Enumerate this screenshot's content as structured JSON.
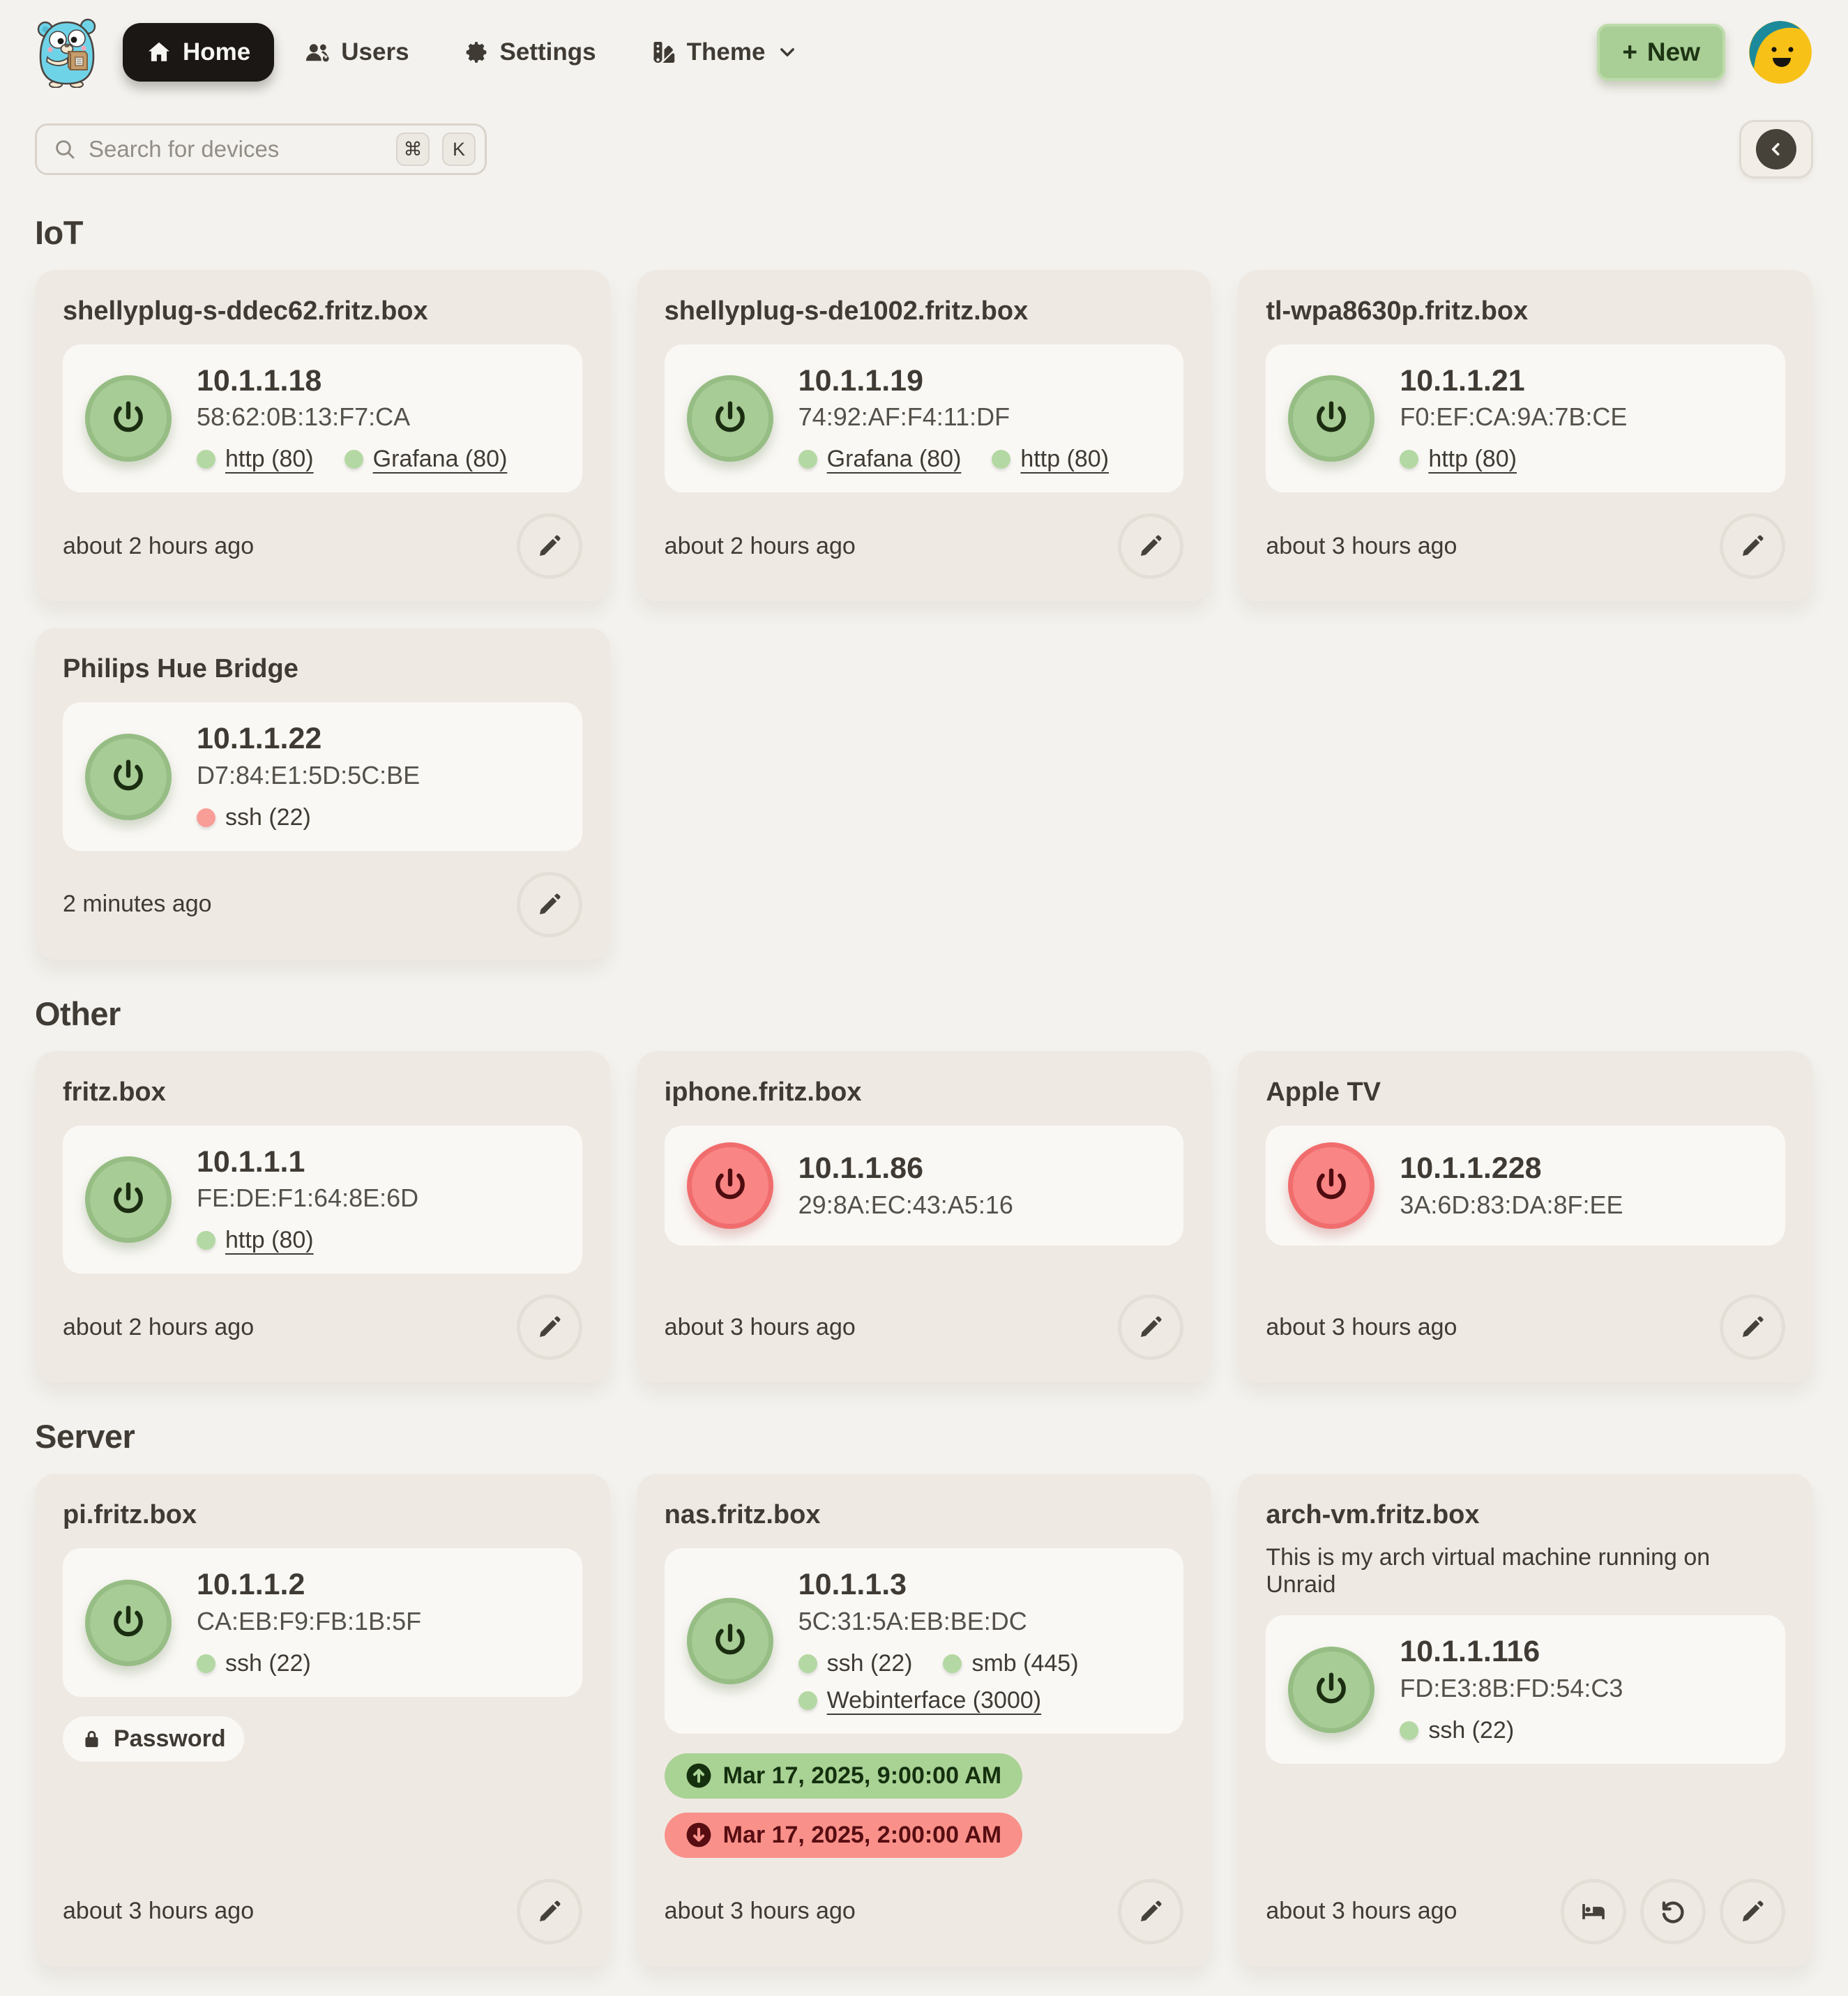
{
  "brand": {
    "logo": "gopher-mascot"
  },
  "nav": {
    "home": "Home",
    "users": "Users",
    "settings": "Settings",
    "theme": "Theme",
    "new_plus": "+",
    "new_label": "New"
  },
  "search": {
    "placeholder": "Search for devices",
    "key_cmd": "⌘",
    "key_k": "K"
  },
  "colors": {
    "page_bg": "#F4F2EE",
    "card_bg": "#EFE9E3",
    "panel_bg": "#FAF8F5",
    "power_on": "#A7CC95",
    "power_off": "#F98585",
    "port_up_dot": "#B4D8A3",
    "port_down_dot": "#F99E97",
    "wake_badge": "#A9D295",
    "shutdown_badge": "#F9918A",
    "nav_active": "#1A1714",
    "new_button": "#A9CE96"
  },
  "sections": [
    {
      "title": "IoT",
      "devices": [
        {
          "name": "shellyplug-s-ddec62.fritz.box",
          "ip": "10.1.1.18",
          "mac": "58:62:0B:13:F7:CA",
          "power": "on",
          "ports": [
            {
              "label": "http (80)",
              "status": "up",
              "link": true
            },
            {
              "label": "Grafana (80)",
              "status": "up",
              "link": true
            }
          ],
          "updated": "about 2 hours ago",
          "actions": [
            "edit"
          ]
        },
        {
          "name": "shellyplug-s-de1002.fritz.box",
          "ip": "10.1.1.19",
          "mac": "74:92:AF:F4:11:DF",
          "power": "on",
          "ports": [
            {
              "label": "Grafana (80)",
              "status": "up",
              "link": true
            },
            {
              "label": "http (80)",
              "status": "up",
              "link": true
            }
          ],
          "updated": "about 2 hours ago",
          "actions": [
            "edit"
          ]
        },
        {
          "name": "tl-wpa8630p.fritz.box",
          "ip": "10.1.1.21",
          "mac": "F0:EF:CA:9A:7B:CE",
          "power": "on",
          "ports": [
            {
              "label": "http (80)",
              "status": "up",
              "link": true
            }
          ],
          "updated": "about 3 hours ago",
          "actions": [
            "edit"
          ]
        },
        {
          "name": "Philips Hue Bridge",
          "ip": "10.1.1.22",
          "mac": "D7:84:E1:5D:5C:BE",
          "power": "on",
          "ports": [
            {
              "label": "ssh (22)",
              "status": "down",
              "link": false
            }
          ],
          "updated": "2 minutes ago",
          "actions": [
            "edit"
          ]
        }
      ]
    },
    {
      "title": "Other",
      "devices": [
        {
          "name": "fritz.box",
          "ip": "10.1.1.1",
          "mac": "FE:DE:F1:64:8E:6D",
          "power": "on",
          "ports": [
            {
              "label": "http (80)",
              "status": "up",
              "link": true
            }
          ],
          "updated": "about 2 hours ago",
          "actions": [
            "edit"
          ]
        },
        {
          "name": "iphone.fritz.box",
          "ip": "10.1.1.86",
          "mac": "29:8A:EC:43:A5:16",
          "power": "off",
          "ports": [],
          "updated": "about 3 hours ago",
          "actions": [
            "edit"
          ]
        },
        {
          "name": "Apple TV",
          "ip": "10.1.1.228",
          "mac": "3A:6D:83:DA:8F:EE",
          "power": "off",
          "ports": [],
          "updated": "about 3 hours ago",
          "actions": [
            "edit"
          ]
        }
      ]
    },
    {
      "title": "Server",
      "devices": [
        {
          "name": "pi.fritz.box",
          "ip": "10.1.1.2",
          "mac": "CA:EB:F9:FB:1B:5F",
          "power": "on",
          "ports": [
            {
              "label": "ssh (22)",
              "status": "up",
              "link": false
            }
          ],
          "password_label": "Password",
          "updated": "about 3 hours ago",
          "actions": [
            "edit"
          ]
        },
        {
          "name": "nas.fritz.box",
          "ip": "10.1.1.3",
          "mac": "5C:31:5A:EB:BE:DC",
          "power": "on",
          "ports": [
            {
              "label": "ssh (22)",
              "status": "up",
              "link": false
            },
            {
              "label": "smb (445)",
              "status": "up",
              "link": false
            },
            {
              "label": "Webinterface (3000)",
              "status": "up",
              "link": true
            }
          ],
          "schedule_wake": "Mar 17, 2025, 9:00:00 AM",
          "schedule_shutdown": "Mar 17, 2025, 2:00:00 AM",
          "updated": "about 3 hours ago",
          "actions": [
            "edit"
          ]
        },
        {
          "name": "arch-vm.fritz.box",
          "description": "This is my arch virtual machine running on Unraid",
          "ip": "10.1.1.116",
          "mac": "FD:E3:8B:FD:54:C3",
          "power": "on",
          "ports": [
            {
              "label": "ssh (22)",
              "status": "up",
              "link": false
            }
          ],
          "updated": "about 3 hours ago",
          "actions": [
            "sleep",
            "restart",
            "edit"
          ]
        }
      ]
    }
  ]
}
